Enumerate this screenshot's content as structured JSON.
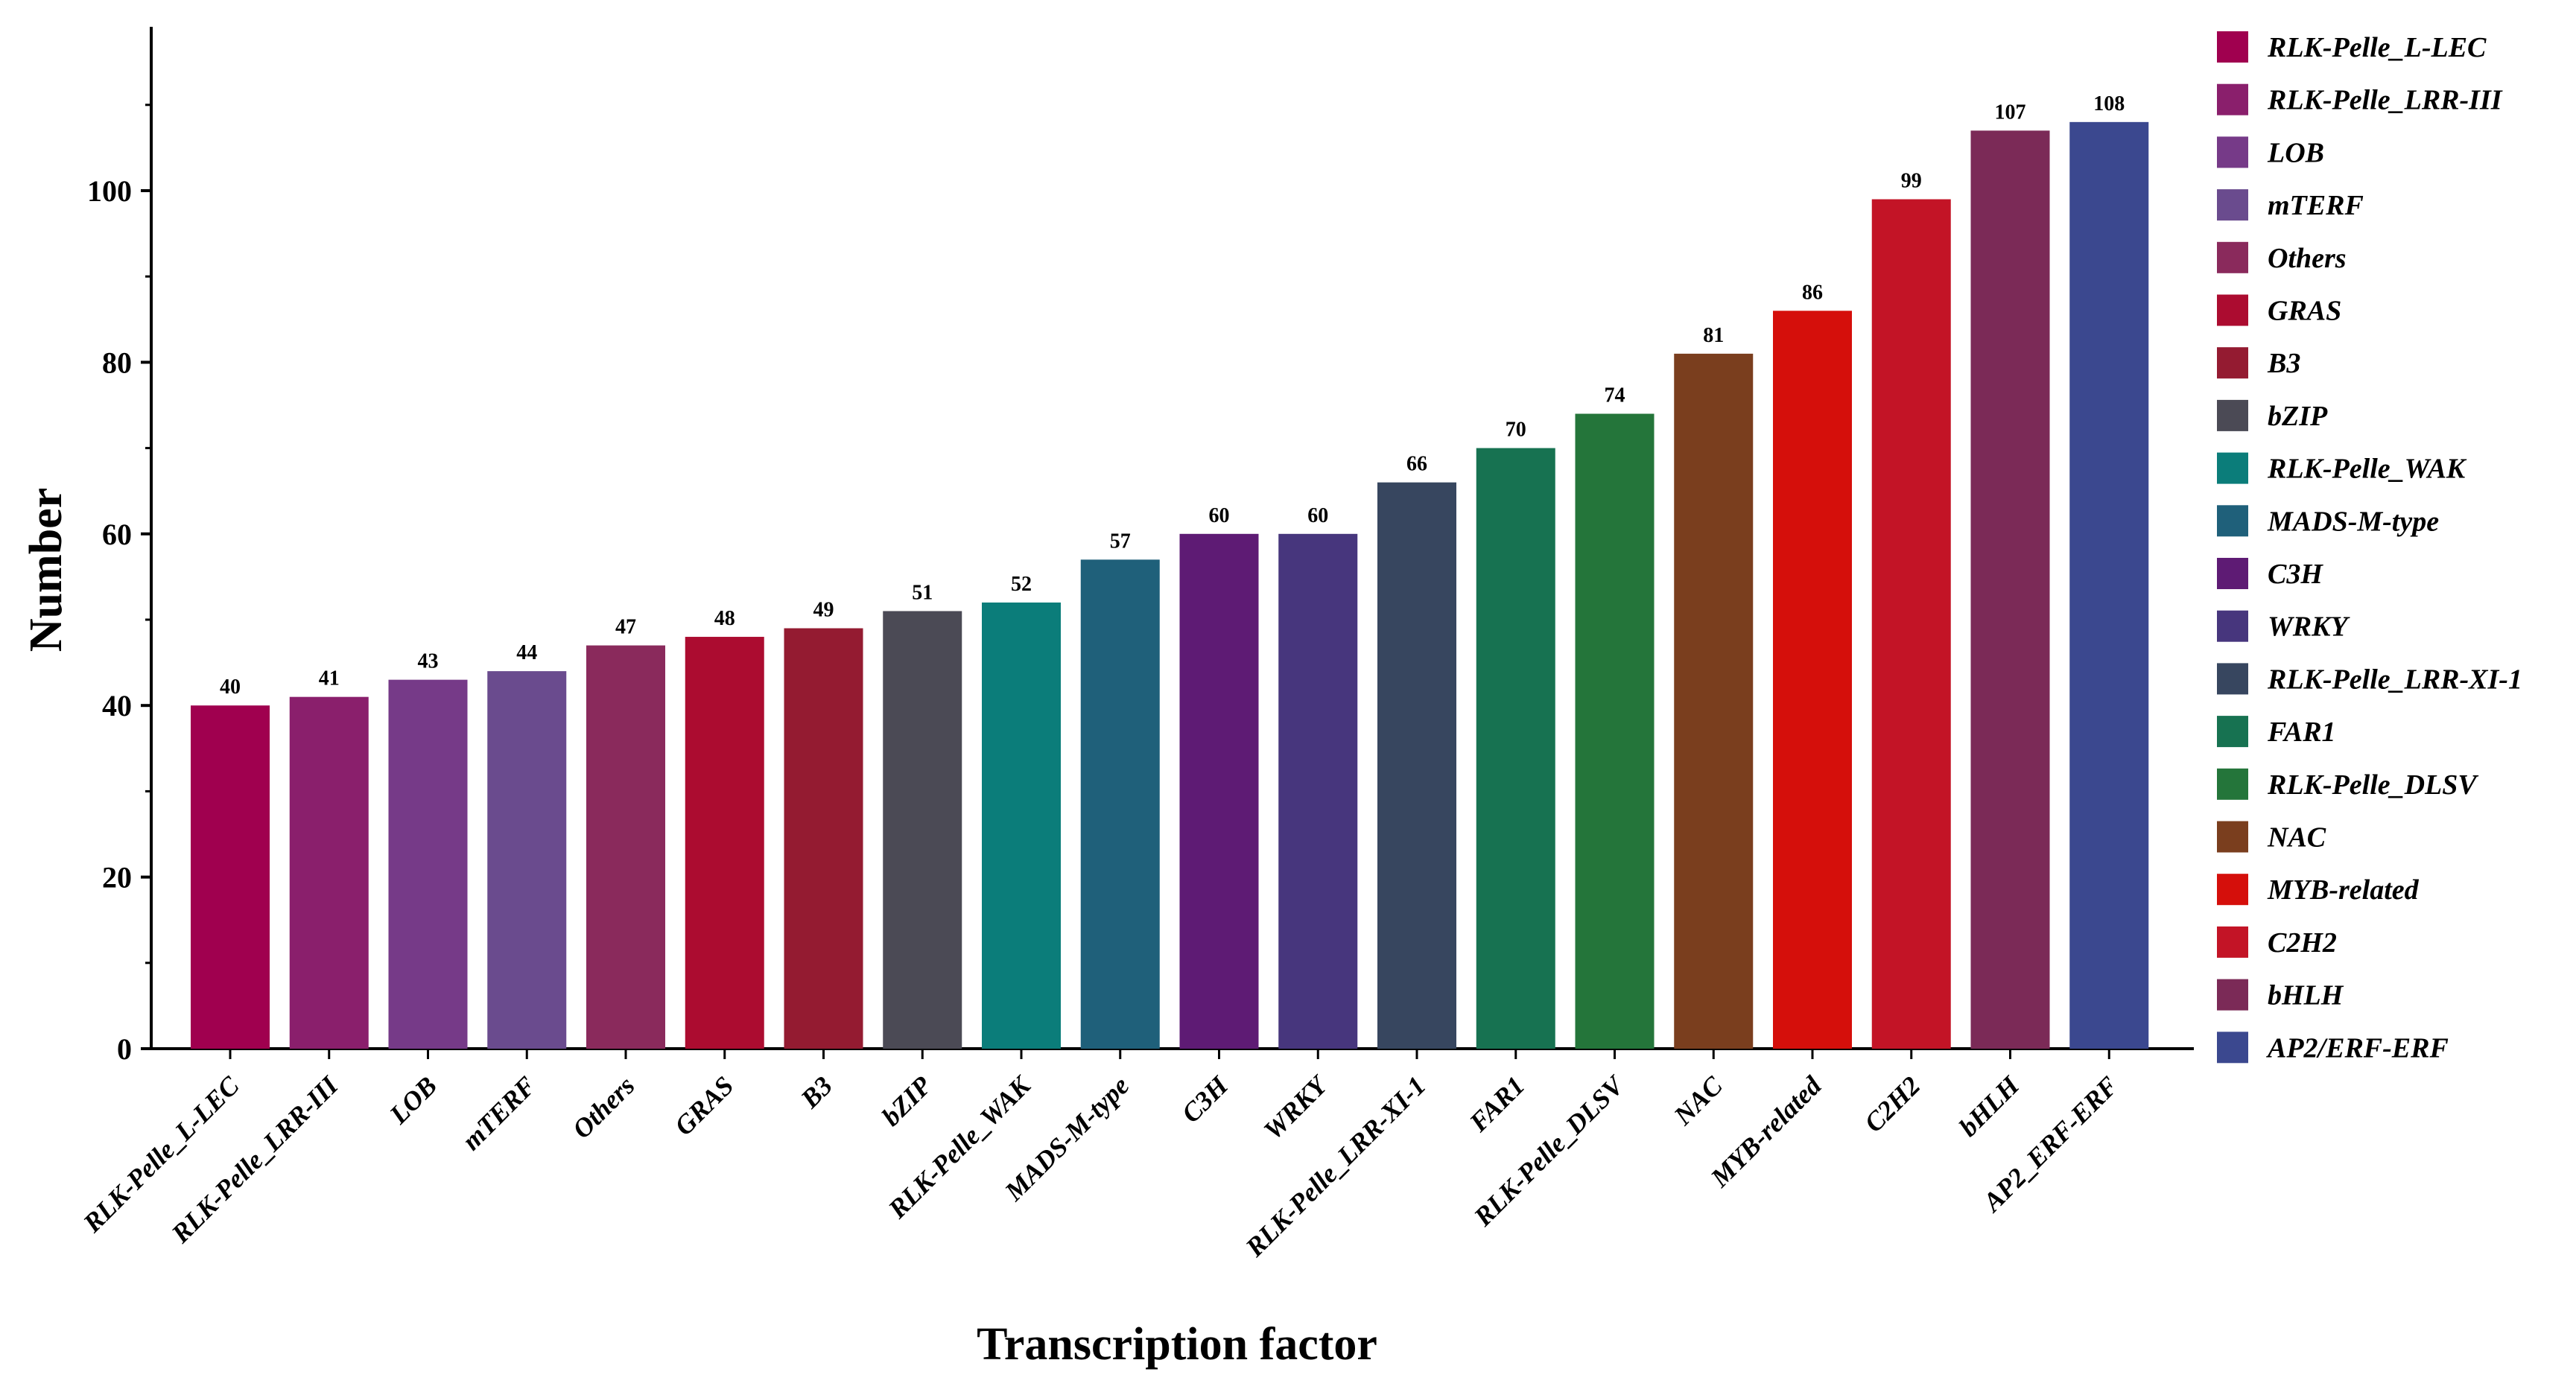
{
  "chart_data": {
    "type": "bar",
    "xlabel": "Transcription factor",
    "ylabel": "Number",
    "ylim": [
      0,
      118
    ],
    "yticks": [
      0,
      20,
      40,
      60,
      80,
      100
    ],
    "grid": false,
    "legend_position": "right",
    "categories": [
      "RLK-Pelle_L-LEC",
      "RLK-Pelle_LRR-III",
      "LOB",
      "mTERF",
      "Others",
      "GRAS",
      "B3",
      "bZIP",
      "RLK-Pelle_WAK",
      "MADS-M-type",
      "C3H",
      "WRKY",
      "RLK-Pelle_LRR-XI-1",
      "FAR1",
      "RLK-Pelle_DLSV",
      "NAC",
      "MYB-related",
      "C2H2",
      "bHLH",
      "AP2_ERF-ERF"
    ],
    "values": [
      40,
      41,
      43,
      44,
      47,
      48,
      49,
      51,
      52,
      57,
      60,
      60,
      66,
      70,
      74,
      81,
      86,
      99,
      107,
      108
    ],
    "colors": [
      "#A0004F",
      "#8A1F6C",
      "#763A88",
      "#6A4B8E",
      "#8A2A5C",
      "#AC0C30",
      "#941B31",
      "#4B4A55",
      "#0B7D7A",
      "#1F607A",
      "#5E1B74",
      "#47367D",
      "#37465F",
      "#177251",
      "#24753A",
      "#7A3E1E",
      "#D50F0B",
      "#C31426",
      "#7B2A57",
      "#3B488F"
    ],
    "legend": [
      "RLK-Pelle_L-LEC",
      "RLK-Pelle_LRR-III",
      "LOB",
      "mTERF",
      "Others",
      "GRAS",
      "B3",
      "bZIP",
      "RLK-Pelle_WAK",
      "MADS-M-type",
      "C3H",
      "WRKY",
      "RLK-Pelle_LRR-XI-1",
      "FAR1",
      "RLK-Pelle_DLSV",
      "NAC",
      "MYB-related",
      "C2H2",
      "bHLH",
      "AP2/ERF-ERF"
    ]
  }
}
